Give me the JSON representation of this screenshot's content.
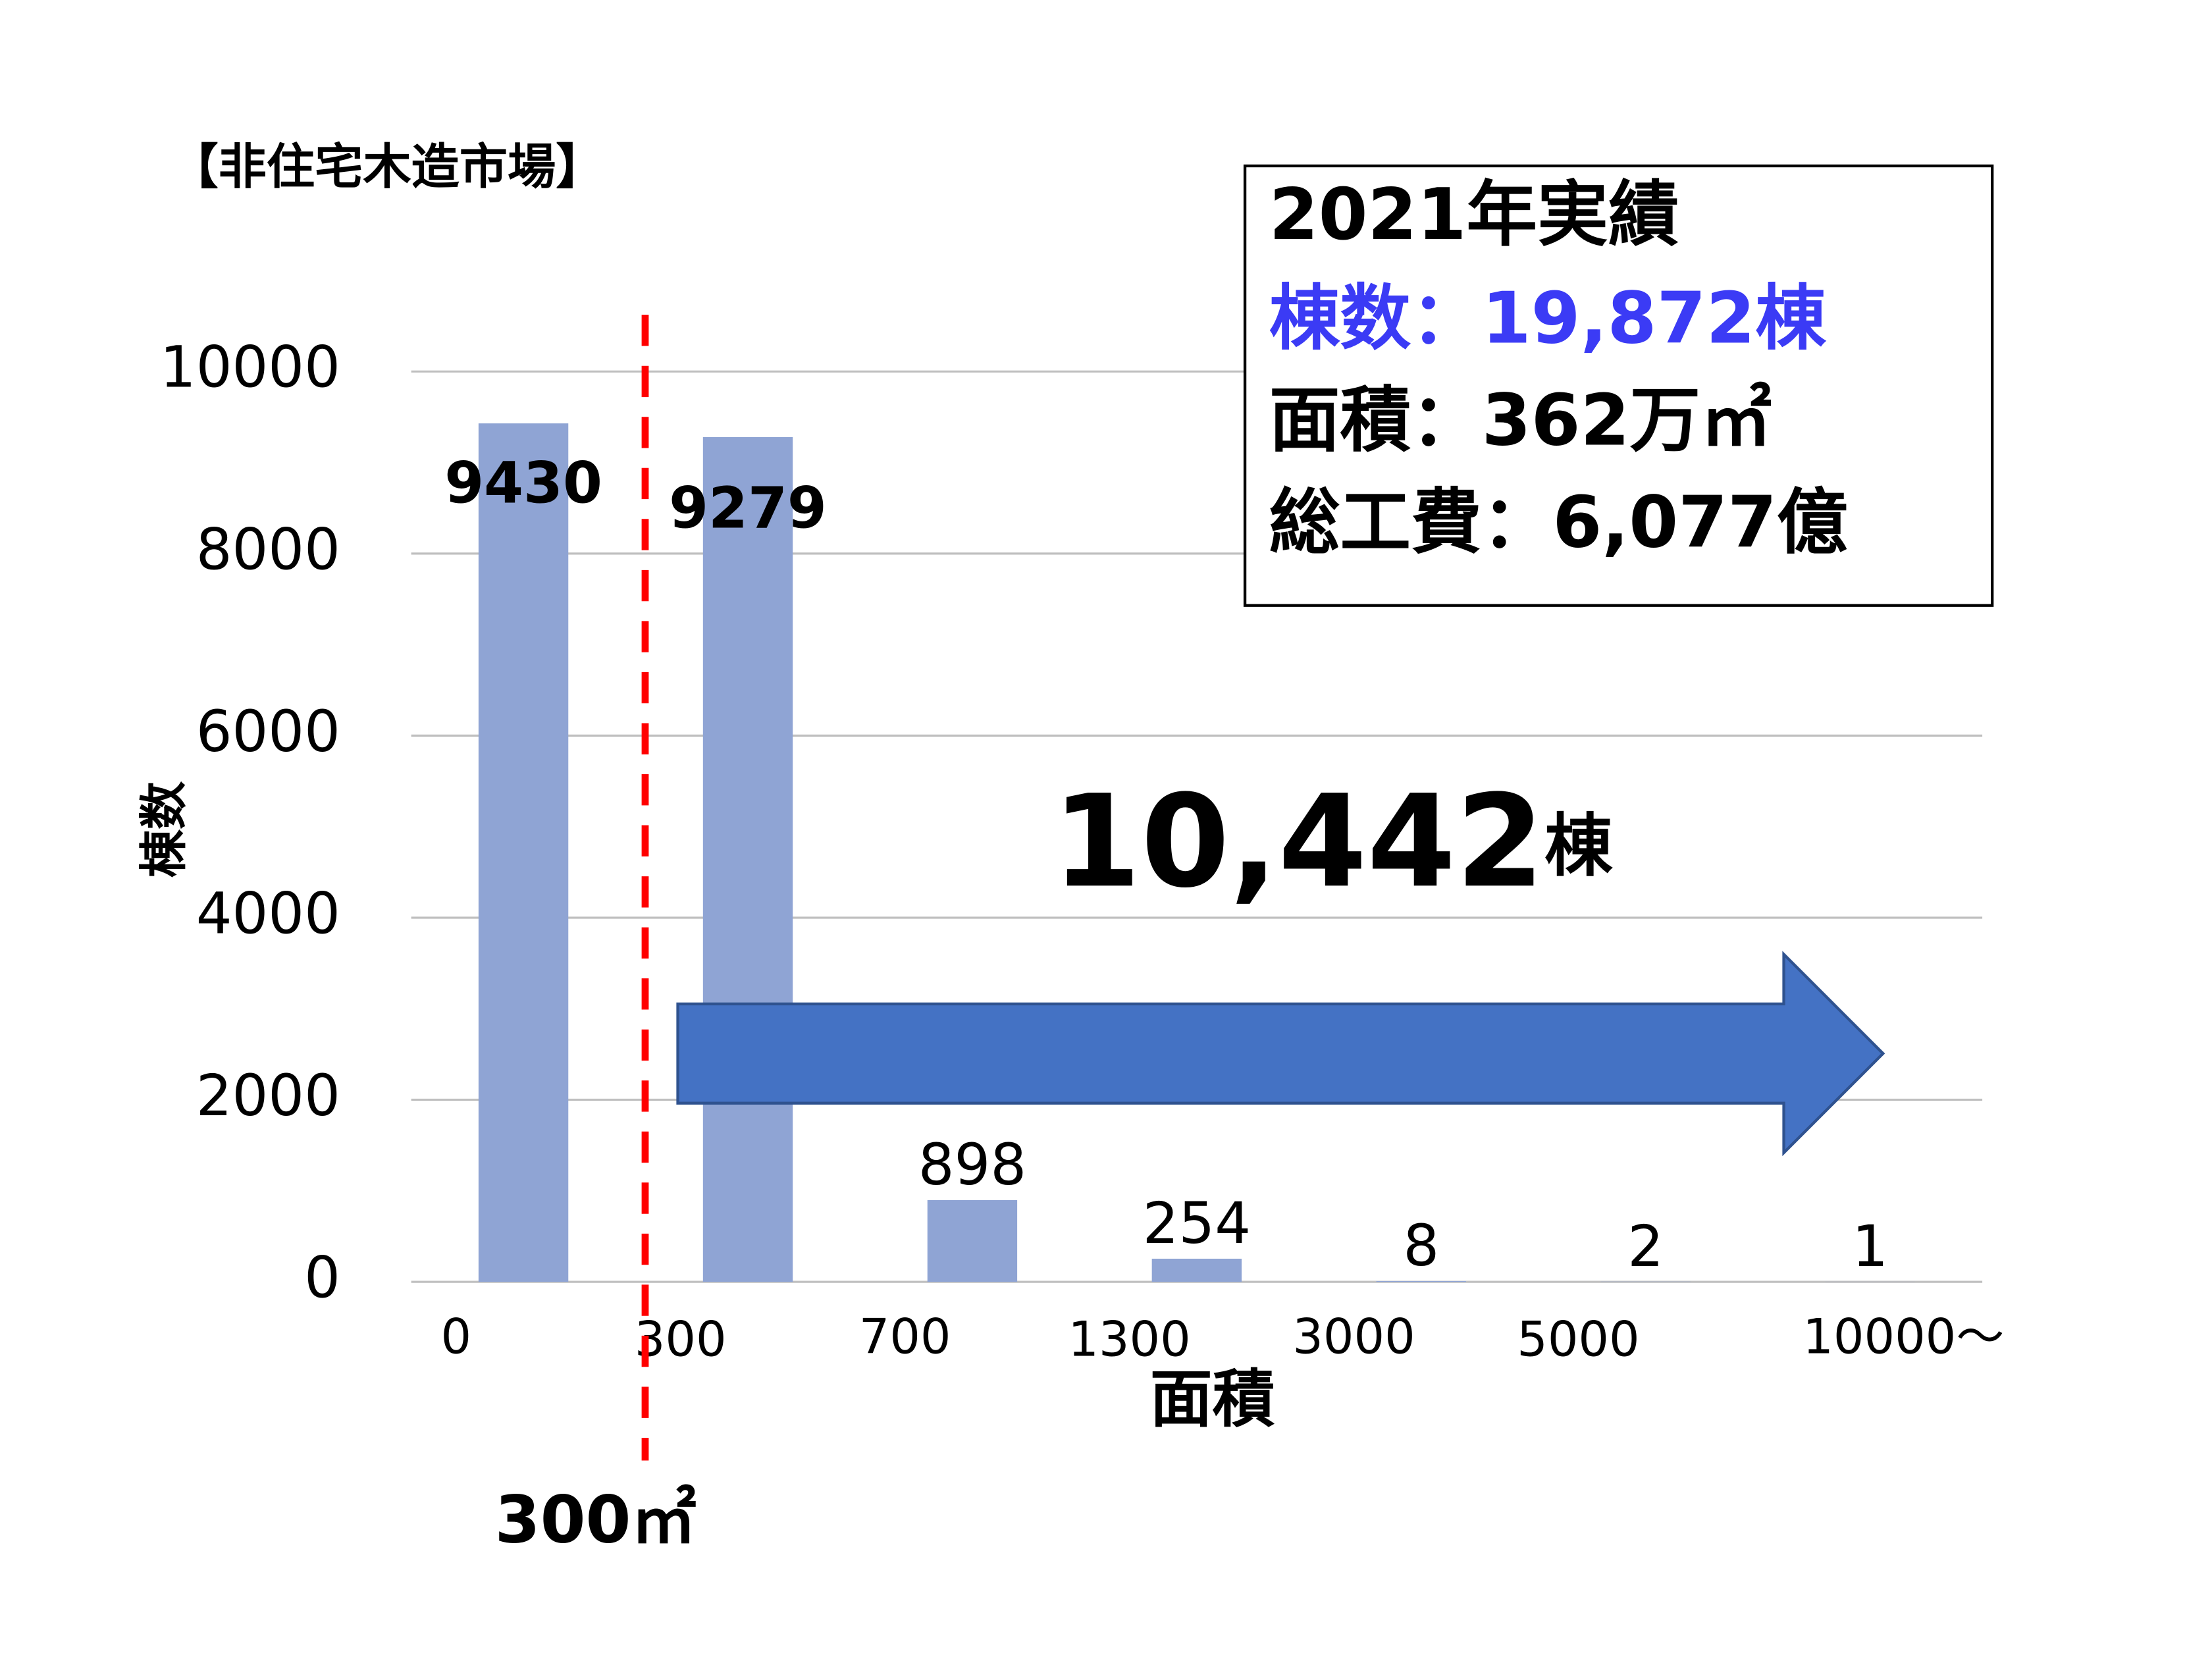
{
  "chart_data": {
    "type": "bar",
    "title": "【非住宅木造市場】",
    "x_label": "面積",
    "y_label": "棟数",
    "categories": [
      "0",
      "300",
      "700",
      "1300",
      "3000",
      "5000",
      "10000～"
    ],
    "values": [
      9430,
      9279,
      898,
      254,
      8,
      2,
      1
    ],
    "color": "#8fa4d4",
    "ylim": [
      0,
      10000
    ],
    "yticks": [
      0,
      2000,
      4000,
      6000,
      8000,
      10000
    ],
    "grid": true,
    "summary": {
      "heading": "2021年実績",
      "count": "棟数：19,872棟",
      "area": "面積：362万㎡",
      "cost": "総工費：6,077億"
    },
    "threshold_label": "300㎡",
    "annotation": {
      "number": "10,442",
      "unit": "棟"
    }
  }
}
